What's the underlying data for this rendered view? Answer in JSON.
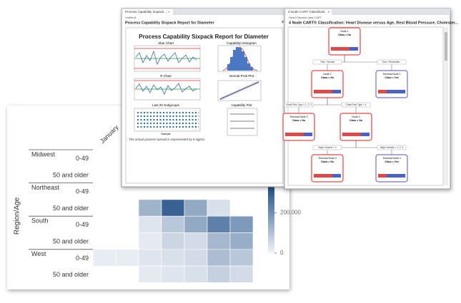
{
  "chart_data": {
    "type": "heatmap",
    "y_label": "Region/Age",
    "columns": [
      "January",
      null,
      null,
      null,
      null,
      null,
      null
    ],
    "row_groups": [
      "Midwest",
      "Northeast",
      "South",
      "West"
    ],
    "rows": [
      "0-49",
      "50 and older",
      "0-49",
      "50 and older",
      "0-49",
      "50 and older",
      "0-49",
      "50 and older"
    ],
    "values": [
      [
        null,
        null,
        null,
        null,
        null,
        null,
        null
      ],
      [
        null,
        null,
        null,
        null,
        null,
        null,
        null
      ],
      [
        null,
        null,
        null,
        null,
        null,
        null,
        null
      ],
      [
        null,
        null,
        130000,
        290000,
        150000,
        40000,
        null
      ],
      [
        null,
        null,
        30000,
        90000,
        150000,
        230000,
        180000
      ],
      [
        null,
        null,
        20000,
        60000,
        50000,
        120000,
        140000
      ],
      [
        15000,
        15000,
        30000,
        40000,
        50000,
        110000,
        90000
      ],
      [
        null,
        null,
        20000,
        30000,
        40000,
        70000,
        50000
      ]
    ],
    "color": "#1f4e86",
    "zlim": [
      0,
      330000
    ],
    "zticks": [
      {
        "value": 200000,
        "label": "200,000"
      },
      0
    ]
  },
  "capability_window": {
    "tab": "Process Capability Sixpack... ×",
    "file": "Untitled1",
    "header": "Process Capability Sixpack Report for Diameter",
    "title": "Process Capability Sixpack Report for Diameter",
    "panels": [
      "Xbar Chart",
      "Capability Histogram",
      "R Chart",
      "Normal Prob Plot",
      "Last 20 Subgroups",
      "Capability Plot"
    ],
    "x_label": "Sample",
    "footer": "The actual process spread is represented by 6 sigma."
  },
  "cart_window": {
    "tab": "4-Node CART Classificati... ×",
    "file": "Heart Disease data CART",
    "header": "4 Node CART® Classification: Heart Disease versus Age, Rest Blood Pressure, Cholester...",
    "nodes": [
      {
        "title": "Node 1",
        "class": "Class = No"
      },
      {
        "title": "Node 2",
        "class": "Class = No"
      },
      {
        "title": "Terminal Node 1",
        "class": "Class = Yes"
      },
      {
        "title": "Terminal Node 2",
        "class": "Class = No"
      },
      {
        "title": "Node 3",
        "class": "Class = No"
      },
      {
        "title": "Terminal Node 3",
        "class": "Class = No"
      },
      {
        "title": "Terminal Node 4",
        "class": "Class = Yes"
      }
    ],
    "splits": [
      "Thal = Normal",
      "Thal = Reversible...",
      "Chest Pain Type = 1, 2, 3",
      "Chest Pain Type = 4",
      "Major Vessels = 0",
      "Major Vessels = 1, 2, 3"
    ]
  }
}
